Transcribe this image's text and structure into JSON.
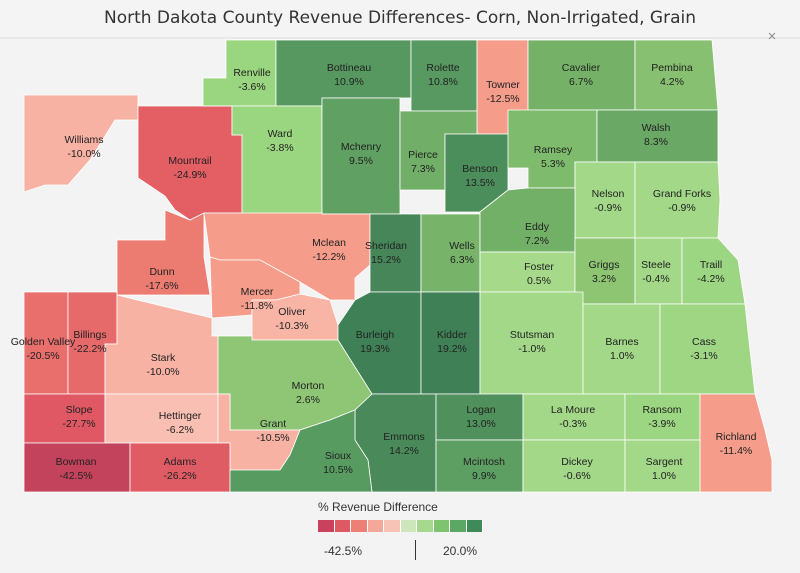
{
  "title": "North Dakota County Revenue Differences- Corn, Non-Irrigated, Grain",
  "legend": {
    "title": "% Revenue Difference",
    "min": "-42.5%",
    "max": "20.0%",
    "colors": [
      "#c9415d",
      "#dd5a63",
      "#ec8076",
      "#f4a89a",
      "#f6c3b6",
      "#cde6bc",
      "#a7d890",
      "#7ec46f",
      "#5aa864",
      "#3f8a59"
    ]
  },
  "counties": [
    {
      "name": "Renville",
      "value": "-3.6%",
      "color": "#9ad57f"
    },
    {
      "name": "Bottineau",
      "value": "10.9%",
      "color": "#569860"
    },
    {
      "name": "Rolette",
      "value": "10.8%",
      "color": "#579960"
    },
    {
      "name": "Towner",
      "value": "-12.5%",
      "color": "#f59d8a"
    },
    {
      "name": "Cavalier",
      "value": "6.7%",
      "color": "#75b268"
    },
    {
      "name": "Pembina",
      "value": "4.2%",
      "color": "#86c070"
    },
    {
      "name": "Williams",
      "value": "-10.0%",
      "color": "#f7b2a4"
    },
    {
      "name": "Mountrail",
      "value": "-24.9%",
      "color": "#e35f64"
    },
    {
      "name": "Ward",
      "value": "-3.8%",
      "color": "#9ad57f"
    },
    {
      "name": "Mchenry",
      "value": "9.5%",
      "color": "#60a063"
    },
    {
      "name": "Pierce",
      "value": "7.3%",
      "color": "#71ae67"
    },
    {
      "name": "Benson",
      "value": "13.5%",
      "color": "#4c8e5b"
    },
    {
      "name": "Ramsey",
      "value": "5.3%",
      "color": "#7fbb6d"
    },
    {
      "name": "Walsh",
      "value": "8.3%",
      "color": "#6aa866"
    },
    {
      "name": "Nelson",
      "value": "-0.9%",
      "color": "#a2d888"
    },
    {
      "name": "Grand Forks",
      "value": "-0.9%",
      "color": "#a2d888"
    },
    {
      "name": "Dunn",
      "value": "-17.6%",
      "color": "#ec7c72"
    },
    {
      "name": "Mclean",
      "value": "-12.2%",
      "color": "#f59d8a"
    },
    {
      "name": "Sheridan",
      "value": "15.2%",
      "color": "#468659"
    },
    {
      "name": "Wells",
      "value": "6.3%",
      "color": "#77b46a"
    },
    {
      "name": "Eddy",
      "value": "7.2%",
      "color": "#72af67"
    },
    {
      "name": "Foster",
      "value": "0.5%",
      "color": "#a6d98a"
    },
    {
      "name": "Griggs",
      "value": "3.2%",
      "color": "#8dc573"
    },
    {
      "name": "Steele",
      "value": "-0.4%",
      "color": "#a2d888"
    },
    {
      "name": "Traill",
      "value": "-4.2%",
      "color": "#9cd682"
    },
    {
      "name": "Mercer",
      "value": "-11.8%",
      "color": "#f59d8a"
    },
    {
      "name": "Oliver",
      "value": "-10.3%",
      "color": "#f8b5a6"
    },
    {
      "name": "Golden Valley",
      "value": "-20.5%",
      "color": "#e96f6c"
    },
    {
      "name": "Billings",
      "value": "-22.2%",
      "color": "#e76a6a"
    },
    {
      "name": "Stark",
      "value": "-10.0%",
      "color": "#f7b2a4"
    },
    {
      "name": "Burleigh",
      "value": "19.3%",
      "color": "#3f8057"
    },
    {
      "name": "Kidder",
      "value": "19.2%",
      "color": "#3f8057"
    },
    {
      "name": "Stutsman",
      "value": "-1.0%",
      "color": "#a2d888"
    },
    {
      "name": "Barnes",
      "value": "1.0%",
      "color": "#a3d889"
    },
    {
      "name": "Cass",
      "value": "-3.1%",
      "color": "#9ed684"
    },
    {
      "name": "Morton",
      "value": "2.6%",
      "color": "#8fc675"
    },
    {
      "name": "Slope",
      "value": "-27.7%",
      "color": "#df5863"
    },
    {
      "name": "Hettinger",
      "value": "-6.2%",
      "color": "#f8bfb2"
    },
    {
      "name": "Grant",
      "value": "-10.5%",
      "color": "#f7b2a4"
    },
    {
      "name": "Emmons",
      "value": "14.2%",
      "color": "#4a8a5a"
    },
    {
      "name": "Logan",
      "value": "13.0%",
      "color": "#4f905c"
    },
    {
      "name": "La Moure",
      "value": "-0.3%",
      "color": "#a2d888"
    },
    {
      "name": "Ransom",
      "value": "-3.9%",
      "color": "#9cd682"
    },
    {
      "name": "Richland",
      "value": "-11.4%",
      "color": "#f59d8a"
    },
    {
      "name": "Bowman",
      "value": "-42.5%",
      "color": "#c4435c"
    },
    {
      "name": "Adams",
      "value": "-26.2%",
      "color": "#e05c64"
    },
    {
      "name": "Sioux",
      "value": "10.5%",
      "color": "#589b61"
    },
    {
      "name": "Mcintosh",
      "value": "9.9%",
      "color": "#5d9e62"
    },
    {
      "name": "Dickey",
      "value": "-0.6%",
      "color": "#a2d888"
    },
    {
      "name": "Sargent",
      "value": "1.0%",
      "color": "#a3d889"
    }
  ]
}
